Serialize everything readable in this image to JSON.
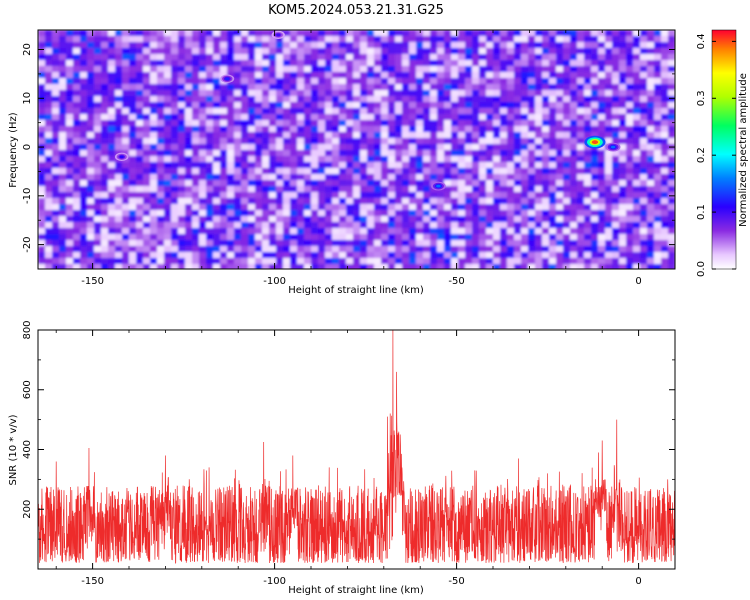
{
  "title": "KOM5.2024.053.21.31.G25",
  "chart_data": [
    {
      "type": "heatmap",
      "xlabel": "Height of straight line (km)",
      "ylabel": "Frequency (Hz)",
      "xlim": [
        -165,
        10
      ],
      "ylim": [
        -25,
        24
      ],
      "x_ticks": [
        "-150",
        "-100",
        "-50",
        "0"
      ],
      "x_tick_values": [
        -150,
        -100,
        -50,
        0
      ],
      "y_ticks": [
        "-20",
        "-10",
        "0",
        "10",
        "20"
      ],
      "y_tick_values": [
        -20,
        -10,
        0,
        10,
        20
      ],
      "colorbar": {
        "label": "Normalized spectral amplitude",
        "range": [
          0.0,
          0.42
        ],
        "ticks": [
          "0.0",
          "0.1",
          "0.2",
          "0.3",
          "0.4"
        ],
        "tick_values": [
          0.0,
          0.1,
          0.2,
          0.3,
          0.4
        ]
      },
      "notable_peaks": [
        {
          "x": -12,
          "y": 1,
          "value": 0.4
        },
        {
          "x": -7,
          "y": 0,
          "value": 0.15
        },
        {
          "x": -55,
          "y": -8,
          "value": 0.15
        },
        {
          "x": -113,
          "y": 14,
          "value": 0.12
        },
        {
          "x": -142,
          "y": -2,
          "value": 0.11
        },
        {
          "x": -99,
          "y": 23,
          "value": 0.1
        }
      ]
    },
    {
      "type": "line",
      "xlabel": "Height of straight line (km)",
      "ylabel": "SNR (10 * v/v)",
      "xlim": [
        -165,
        10
      ],
      "ylim": [
        0,
        800
      ],
      "x_ticks": [
        "-150",
        "-100",
        "-50",
        "0"
      ],
      "x_tick_values": [
        -150,
        -100,
        -50,
        0
      ],
      "y_ticks": [
        "200",
        "400",
        "600",
        "800"
      ],
      "y_tick_values": [
        200,
        400,
        600,
        800
      ],
      "baseline_range": [
        20,
        280
      ],
      "peaks": [
        {
          "x": -67.5,
          "y": 800
        },
        {
          "x": -66.5,
          "y": 660
        },
        {
          "x": -65.5,
          "y": 450
        },
        {
          "x": -66,
          "y": 380
        },
        {
          "x": -6,
          "y": 500
        },
        {
          "x": -10,
          "y": 430
        },
        {
          "x": -11,
          "y": 390
        },
        {
          "x": -103,
          "y": 425
        },
        {
          "x": -151,
          "y": 405
        },
        {
          "x": -130,
          "y": 380
        },
        {
          "x": -95,
          "y": 380
        },
        {
          "x": -118,
          "y": 340
        },
        {
          "x": -33,
          "y": 370
        },
        {
          "x": -45,
          "y": 330
        },
        {
          "x": -160,
          "y": 360
        },
        {
          "x": -85,
          "y": 340
        },
        {
          "x": -25,
          "y": 320
        },
        {
          "x": 8,
          "y": 300
        }
      ]
    }
  ]
}
